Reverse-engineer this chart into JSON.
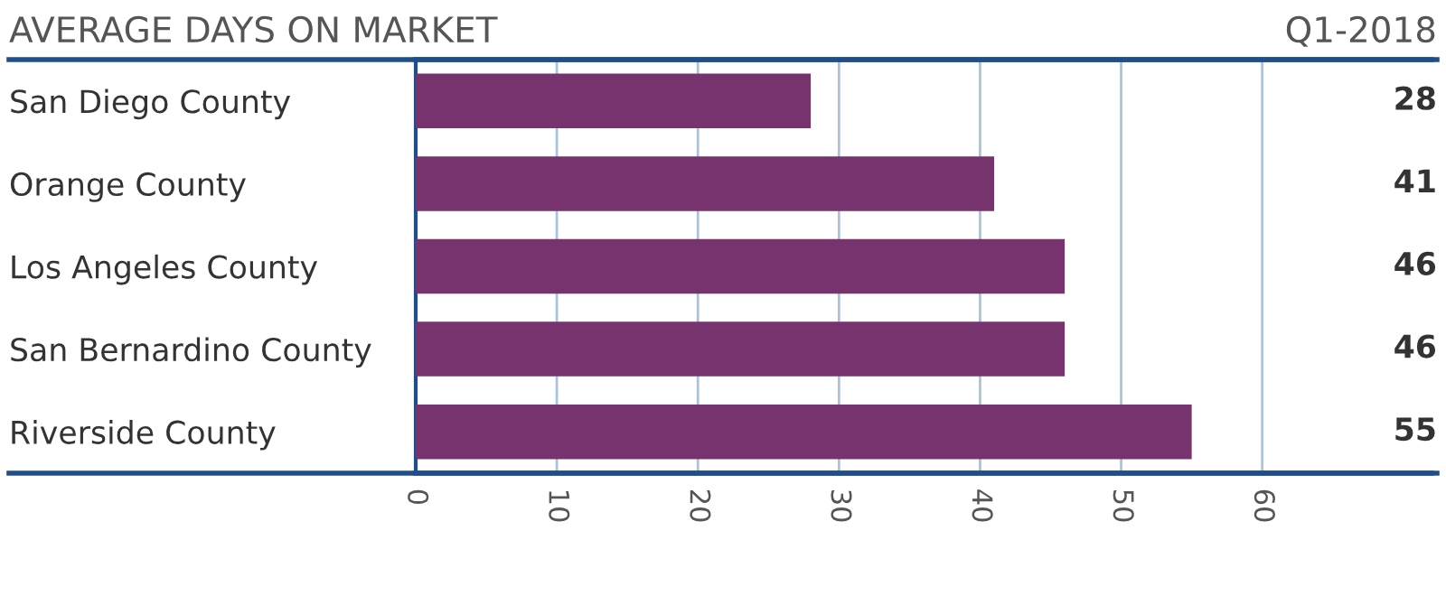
{
  "chart_data": {
    "type": "bar",
    "orientation": "horizontal",
    "title": "AVERAGE DAYS ON MARKET",
    "subtitle": "Q1-2018",
    "categories": [
      "San Diego County",
      "Orange County",
      "Los Angeles County",
      "San Bernardino County",
      "Riverside County"
    ],
    "values": [
      28,
      41,
      46,
      46,
      55
    ],
    "color": "#76336e",
    "data_labels": true,
    "xlim": [
      0,
      72
    ],
    "xticks": [
      0,
      10,
      20,
      30,
      40,
      50,
      60
    ],
    "grid": "x"
  }
}
